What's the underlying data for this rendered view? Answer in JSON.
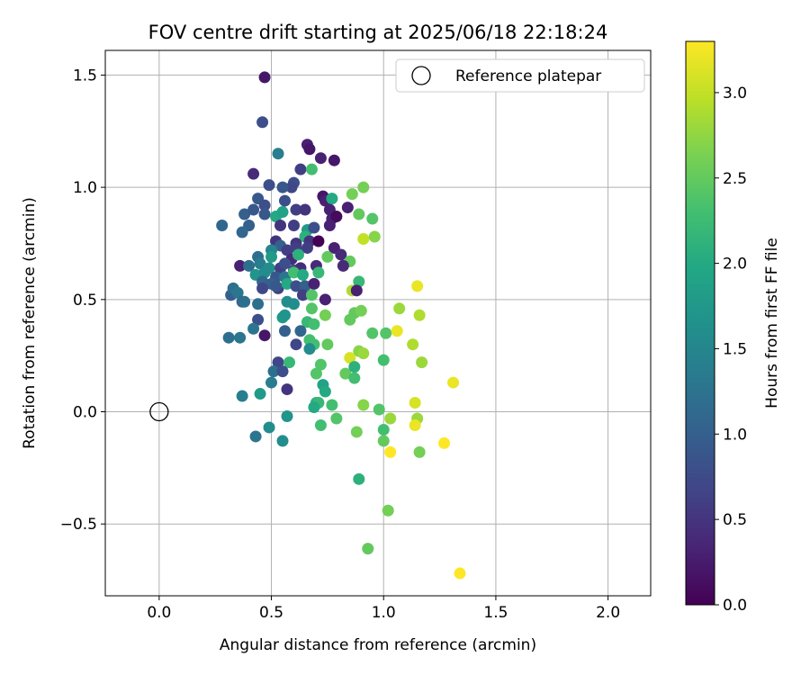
{
  "chart_data": {
    "type": "scatter",
    "title": "FOV centre drift starting at 2025/06/18 22:18:24",
    "xlabel": "Angular distance from reference (arcmin)",
    "ylabel": "Rotation from reference (arcmin)",
    "xlim": [
      -0.24,
      2.19
    ],
    "ylim": [
      -0.82,
      1.61
    ],
    "xticks": [
      "0.0",
      "0.5",
      "1.0",
      "1.5",
      "2.0"
    ],
    "yticks": [
      "−0.5",
      "0.0",
      "0.5",
      "1.0",
      "1.5"
    ],
    "grid": true,
    "legend": {
      "placement": "top-right",
      "entries": [
        "Reference platepar"
      ]
    },
    "reference_point": {
      "x": 0.0,
      "y": 0.0,
      "marker": "hollow-circle"
    },
    "colorbar": {
      "label": "Hours from first FF file",
      "range": [
        0.0,
        3.3
      ],
      "ticks": [
        "0.0",
        "0.5",
        "1.0",
        "1.5",
        "2.0",
        "2.5",
        "3.0"
      ],
      "colormap": "viridis"
    },
    "series": [
      {
        "colored_by": "Hours from first FF file",
        "points": [
          {
            "x": 0.47,
            "y": 1.49,
            "c": 0.2
          },
          {
            "x": 0.46,
            "y": 1.29,
            "c": 0.8
          },
          {
            "x": 0.66,
            "y": 1.19,
            "c": 0.3
          },
          {
            "x": 0.53,
            "y": 1.15,
            "c": 1.4
          },
          {
            "x": 0.67,
            "y": 1.17,
            "c": 0.2
          },
          {
            "x": 0.72,
            "y": 1.13,
            "c": 0.3
          },
          {
            "x": 0.78,
            "y": 1.12,
            "c": 0.2
          },
          {
            "x": 0.42,
            "y": 1.06,
            "c": 0.4
          },
          {
            "x": 0.63,
            "y": 1.08,
            "c": 0.6
          },
          {
            "x": 0.68,
            "y": 1.08,
            "c": 2.3
          },
          {
            "x": 0.6,
            "y": 1.02,
            "c": 0.8
          },
          {
            "x": 0.59,
            "y": 1.0,
            "c": 0.7
          },
          {
            "x": 0.49,
            "y": 1.01,
            "c": 0.8
          },
          {
            "x": 0.55,
            "y": 1.0,
            "c": 0.9
          },
          {
            "x": 0.73,
            "y": 0.96,
            "c": 0.2
          },
          {
            "x": 0.74,
            "y": 0.94,
            "c": 0.3
          },
          {
            "x": 0.77,
            "y": 0.95,
            "c": 2.0
          },
          {
            "x": 0.86,
            "y": 0.97,
            "c": 2.6
          },
          {
            "x": 0.91,
            "y": 1.0,
            "c": 2.6
          },
          {
            "x": 0.44,
            "y": 0.95,
            "c": 0.9
          },
          {
            "x": 0.47,
            "y": 0.92,
            "c": 0.8
          },
          {
            "x": 0.56,
            "y": 0.94,
            "c": 0.8
          },
          {
            "x": 0.61,
            "y": 0.9,
            "c": 0.6
          },
          {
            "x": 0.65,
            "y": 0.9,
            "c": 0.5
          },
          {
            "x": 0.38,
            "y": 0.88,
            "c": 1.0
          },
          {
            "x": 0.42,
            "y": 0.9,
            "c": 0.9
          },
          {
            "x": 0.47,
            "y": 0.88,
            "c": 0.9
          },
          {
            "x": 0.52,
            "y": 0.87,
            "c": 2.0
          },
          {
            "x": 0.55,
            "y": 0.89,
            "c": 1.9
          },
          {
            "x": 0.76,
            "y": 0.9,
            "c": 0.3
          },
          {
            "x": 0.77,
            "y": 0.86,
            "c": 0.3
          },
          {
            "x": 0.79,
            "y": 0.87,
            "c": 0.1
          },
          {
            "x": 0.84,
            "y": 0.91,
            "c": 0.3
          },
          {
            "x": 0.89,
            "y": 0.88,
            "c": 2.5
          },
          {
            "x": 0.95,
            "y": 0.86,
            "c": 2.4
          },
          {
            "x": 0.28,
            "y": 0.83,
            "c": 1.1
          },
          {
            "x": 0.4,
            "y": 0.83,
            "c": 1.0
          },
          {
            "x": 0.54,
            "y": 0.83,
            "c": 0.5
          },
          {
            "x": 0.6,
            "y": 0.83,
            "c": 0.6
          },
          {
            "x": 0.66,
            "y": 0.81,
            "c": 1.8
          },
          {
            "x": 0.69,
            "y": 0.82,
            "c": 0.8
          },
          {
            "x": 0.76,
            "y": 0.83,
            "c": 0.3
          },
          {
            "x": 0.37,
            "y": 0.8,
            "c": 1.1
          },
          {
            "x": 0.65,
            "y": 0.78,
            "c": 2.1
          },
          {
            "x": 0.91,
            "y": 0.77,
            "c": 3.0
          },
          {
            "x": 0.96,
            "y": 0.78,
            "c": 2.7
          },
          {
            "x": 0.52,
            "y": 0.76,
            "c": 0.5
          },
          {
            "x": 0.61,
            "y": 0.75,
            "c": 0.5
          },
          {
            "x": 0.67,
            "y": 0.76,
            "c": 0.5
          },
          {
            "x": 0.71,
            "y": 0.76,
            "c": 0.0
          },
          {
            "x": 0.54,
            "y": 0.74,
            "c": 1.0
          },
          {
            "x": 0.5,
            "y": 0.72,
            "c": 1.5
          },
          {
            "x": 0.57,
            "y": 0.72,
            "c": 0.6
          },
          {
            "x": 0.61,
            "y": 0.73,
            "c": 0.6
          },
          {
            "x": 0.66,
            "y": 0.73,
            "c": 0.6
          },
          {
            "x": 0.78,
            "y": 0.73,
            "c": 0.3
          },
          {
            "x": 0.44,
            "y": 0.69,
            "c": 1.2
          },
          {
            "x": 0.5,
            "y": 0.69,
            "c": 1.8
          },
          {
            "x": 0.59,
            "y": 0.68,
            "c": 0.4
          },
          {
            "x": 0.62,
            "y": 0.7,
            "c": 2.1
          },
          {
            "x": 0.75,
            "y": 0.69,
            "c": 2.5
          },
          {
            "x": 0.81,
            "y": 0.7,
            "c": 0.4
          },
          {
            "x": 0.85,
            "y": 0.67,
            "c": 2.5
          },
          {
            "x": 0.36,
            "y": 0.65,
            "c": 0.3
          },
          {
            "x": 0.4,
            "y": 0.65,
            "c": 1.2
          },
          {
            "x": 0.45,
            "y": 0.66,
            "c": 1.4
          },
          {
            "x": 0.49,
            "y": 0.64,
            "c": 1.6
          },
          {
            "x": 0.54,
            "y": 0.64,
            "c": 0.6
          },
          {
            "x": 0.56,
            "y": 0.66,
            "c": 0.8
          },
          {
            "x": 0.6,
            "y": 0.63,
            "c": 0.8
          },
          {
            "x": 0.63,
            "y": 0.64,
            "c": 0.4
          },
          {
            "x": 0.7,
            "y": 0.65,
            "c": 0.4
          },
          {
            "x": 0.82,
            "y": 0.65,
            "c": 0.4
          },
          {
            "x": 0.43,
            "y": 0.61,
            "c": 1.7
          },
          {
            "x": 0.47,
            "y": 0.62,
            "c": 1.6
          },
          {
            "x": 0.52,
            "y": 0.6,
            "c": 0.9
          },
          {
            "x": 0.56,
            "y": 0.6,
            "c": 1.3
          },
          {
            "x": 0.6,
            "y": 0.62,
            "c": 2.3
          },
          {
            "x": 0.64,
            "y": 0.61,
            "c": 2.0
          },
          {
            "x": 0.71,
            "y": 0.62,
            "c": 2.2
          },
          {
            "x": 0.46,
            "y": 0.58,
            "c": 1.1
          },
          {
            "x": 0.5,
            "y": 0.57,
            "c": 1.0
          },
          {
            "x": 0.53,
            "y": 0.55,
            "c": 0.6
          },
          {
            "x": 0.57,
            "y": 0.57,
            "c": 2.0
          },
          {
            "x": 0.61,
            "y": 0.56,
            "c": 0.8
          },
          {
            "x": 0.65,
            "y": 0.56,
            "c": 1.0
          },
          {
            "x": 0.69,
            "y": 0.57,
            "c": 0.3
          },
          {
            "x": 0.89,
            "y": 0.58,
            "c": 2.2
          },
          {
            "x": 0.32,
            "y": 0.52,
            "c": 1.0
          },
          {
            "x": 0.33,
            "y": 0.55,
            "c": 1.2
          },
          {
            "x": 0.35,
            "y": 0.53,
            "c": 1.3
          },
          {
            "x": 0.46,
            "y": 0.55,
            "c": 0.7
          },
          {
            "x": 0.52,
            "y": 0.56,
            "c": 0.9
          },
          {
            "x": 0.64,
            "y": 0.52,
            "c": 0.6
          },
          {
            "x": 0.68,
            "y": 0.52,
            "c": 2.4
          },
          {
            "x": 0.74,
            "y": 0.5,
            "c": 0.3
          },
          {
            "x": 0.86,
            "y": 0.54,
            "c": 2.9
          },
          {
            "x": 0.88,
            "y": 0.54,
            "c": 0.3
          },
          {
            "x": 1.15,
            "y": 0.56,
            "c": 3.2
          },
          {
            "x": 0.37,
            "y": 0.49,
            "c": 1.1
          },
          {
            "x": 0.38,
            "y": 0.49,
            "c": 1.2
          },
          {
            "x": 0.44,
            "y": 0.48,
            "c": 1.2
          },
          {
            "x": 0.57,
            "y": 0.49,
            "c": 1.6
          },
          {
            "x": 0.6,
            "y": 0.48,
            "c": 1.6
          },
          {
            "x": 0.68,
            "y": 0.46,
            "c": 2.4
          },
          {
            "x": 0.74,
            "y": 0.43,
            "c": 2.6
          },
          {
            "x": 0.87,
            "y": 0.44,
            "c": 2.5
          },
          {
            "x": 0.9,
            "y": 0.45,
            "c": 2.6
          },
          {
            "x": 1.07,
            "y": 0.46,
            "c": 2.8
          },
          {
            "x": 1.16,
            "y": 0.43,
            "c": 2.9
          },
          {
            "x": 0.44,
            "y": 0.41,
            "c": 0.8
          },
          {
            "x": 0.55,
            "y": 0.42,
            "c": 1.8
          },
          {
            "x": 0.56,
            "y": 0.43,
            "c": 1.7
          },
          {
            "x": 0.66,
            "y": 0.4,
            "c": 2.2
          },
          {
            "x": 0.69,
            "y": 0.39,
            "c": 2.3
          },
          {
            "x": 0.85,
            "y": 0.41,
            "c": 2.5
          },
          {
            "x": 0.42,
            "y": 0.37,
            "c": 1.3
          },
          {
            "x": 0.56,
            "y": 0.36,
            "c": 1.0
          },
          {
            "x": 0.63,
            "y": 0.36,
            "c": 1.1
          },
          {
            "x": 0.95,
            "y": 0.35,
            "c": 2.4
          },
          {
            "x": 1.01,
            "y": 0.35,
            "c": 2.4
          },
          {
            "x": 1.06,
            "y": 0.36,
            "c": 3.2
          },
          {
            "x": 0.31,
            "y": 0.33,
            "c": 1.2
          },
          {
            "x": 0.36,
            "y": 0.33,
            "c": 1.3
          },
          {
            "x": 0.47,
            "y": 0.34,
            "c": 0.2
          },
          {
            "x": 0.67,
            "y": 0.32,
            "c": 2.3
          },
          {
            "x": 0.69,
            "y": 0.3,
            "c": 2.3
          },
          {
            "x": 0.61,
            "y": 0.3,
            "c": 0.7
          },
          {
            "x": 0.75,
            "y": 0.3,
            "c": 2.5
          },
          {
            "x": 1.13,
            "y": 0.3,
            "c": 2.9
          },
          {
            "x": 0.67,
            "y": 0.28,
            "c": 1.6
          },
          {
            "x": 0.89,
            "y": 0.27,
            "c": 2.7
          },
          {
            "x": 0.91,
            "y": 0.26,
            "c": 2.8
          },
          {
            "x": 0.85,
            "y": 0.24,
            "c": 3.1
          },
          {
            "x": 0.53,
            "y": 0.22,
            "c": 0.7
          },
          {
            "x": 0.58,
            "y": 0.22,
            "c": 2.2
          },
          {
            "x": 0.72,
            "y": 0.21,
            "c": 2.4
          },
          {
            "x": 1.0,
            "y": 0.23,
            "c": 2.3
          },
          {
            "x": 1.17,
            "y": 0.22,
            "c": 2.8
          },
          {
            "x": 0.51,
            "y": 0.18,
            "c": 1.2
          },
          {
            "x": 0.55,
            "y": 0.18,
            "c": 0.8
          },
          {
            "x": 0.7,
            "y": 0.17,
            "c": 2.4
          },
          {
            "x": 0.83,
            "y": 0.17,
            "c": 2.5
          },
          {
            "x": 0.87,
            "y": 0.2,
            "c": 2.1
          },
          {
            "x": 0.87,
            "y": 0.15,
            "c": 2.3
          },
          {
            "x": 0.5,
            "y": 0.13,
            "c": 1.4
          },
          {
            "x": 0.73,
            "y": 0.12,
            "c": 1.9
          },
          {
            "x": 1.31,
            "y": 0.13,
            "c": 3.2
          },
          {
            "x": 0.57,
            "y": 0.1,
            "c": 0.5
          },
          {
            "x": 0.74,
            "y": 0.09,
            "c": 2.0
          },
          {
            "x": 0.37,
            "y": 0.07,
            "c": 1.4
          },
          {
            "x": 0.45,
            "y": 0.08,
            "c": 1.8
          },
          {
            "x": 0.7,
            "y": 0.04,
            "c": 2.1
          },
          {
            "x": 0.71,
            "y": 0.04,
            "c": 2.2
          },
          {
            "x": 0.69,
            "y": 0.02,
            "c": 2.0
          },
          {
            "x": 0.77,
            "y": 0.03,
            "c": 2.3
          },
          {
            "x": 0.91,
            "y": 0.03,
            "c": 2.7
          },
          {
            "x": 0.98,
            "y": 0.01,
            "c": 2.4
          },
          {
            "x": 1.14,
            "y": 0.04,
            "c": 3.1
          },
          {
            "x": 0.57,
            "y": -0.02,
            "c": 1.7
          },
          {
            "x": 0.79,
            "y": -0.03,
            "c": 2.4
          },
          {
            "x": 1.03,
            "y": -0.03,
            "c": 2.8
          },
          {
            "x": 1.15,
            "y": -0.03,
            "c": 2.8
          },
          {
            "x": 0.49,
            "y": -0.07,
            "c": 1.6
          },
          {
            "x": 0.72,
            "y": -0.06,
            "c": 2.3
          },
          {
            "x": 1.0,
            "y": -0.08,
            "c": 2.3
          },
          {
            "x": 1.14,
            "y": -0.06,
            "c": 3.2
          },
          {
            "x": 0.43,
            "y": -0.11,
            "c": 1.3
          },
          {
            "x": 0.55,
            "y": -0.13,
            "c": 1.6
          },
          {
            "x": 0.88,
            "y": -0.09,
            "c": 2.6
          },
          {
            "x": 1.0,
            "y": -0.13,
            "c": 2.5
          },
          {
            "x": 1.03,
            "y": -0.18,
            "c": 3.3
          },
          {
            "x": 1.16,
            "y": -0.18,
            "c": 2.6
          },
          {
            "x": 1.27,
            "y": -0.14,
            "c": 3.3
          },
          {
            "x": 0.89,
            "y": -0.3,
            "c": 2.1
          },
          {
            "x": 1.02,
            "y": -0.44,
            "c": 2.6
          },
          {
            "x": 0.93,
            "y": -0.61,
            "c": 2.5
          },
          {
            "x": 1.34,
            "y": -0.72,
            "c": 3.3
          }
        ]
      }
    ]
  }
}
